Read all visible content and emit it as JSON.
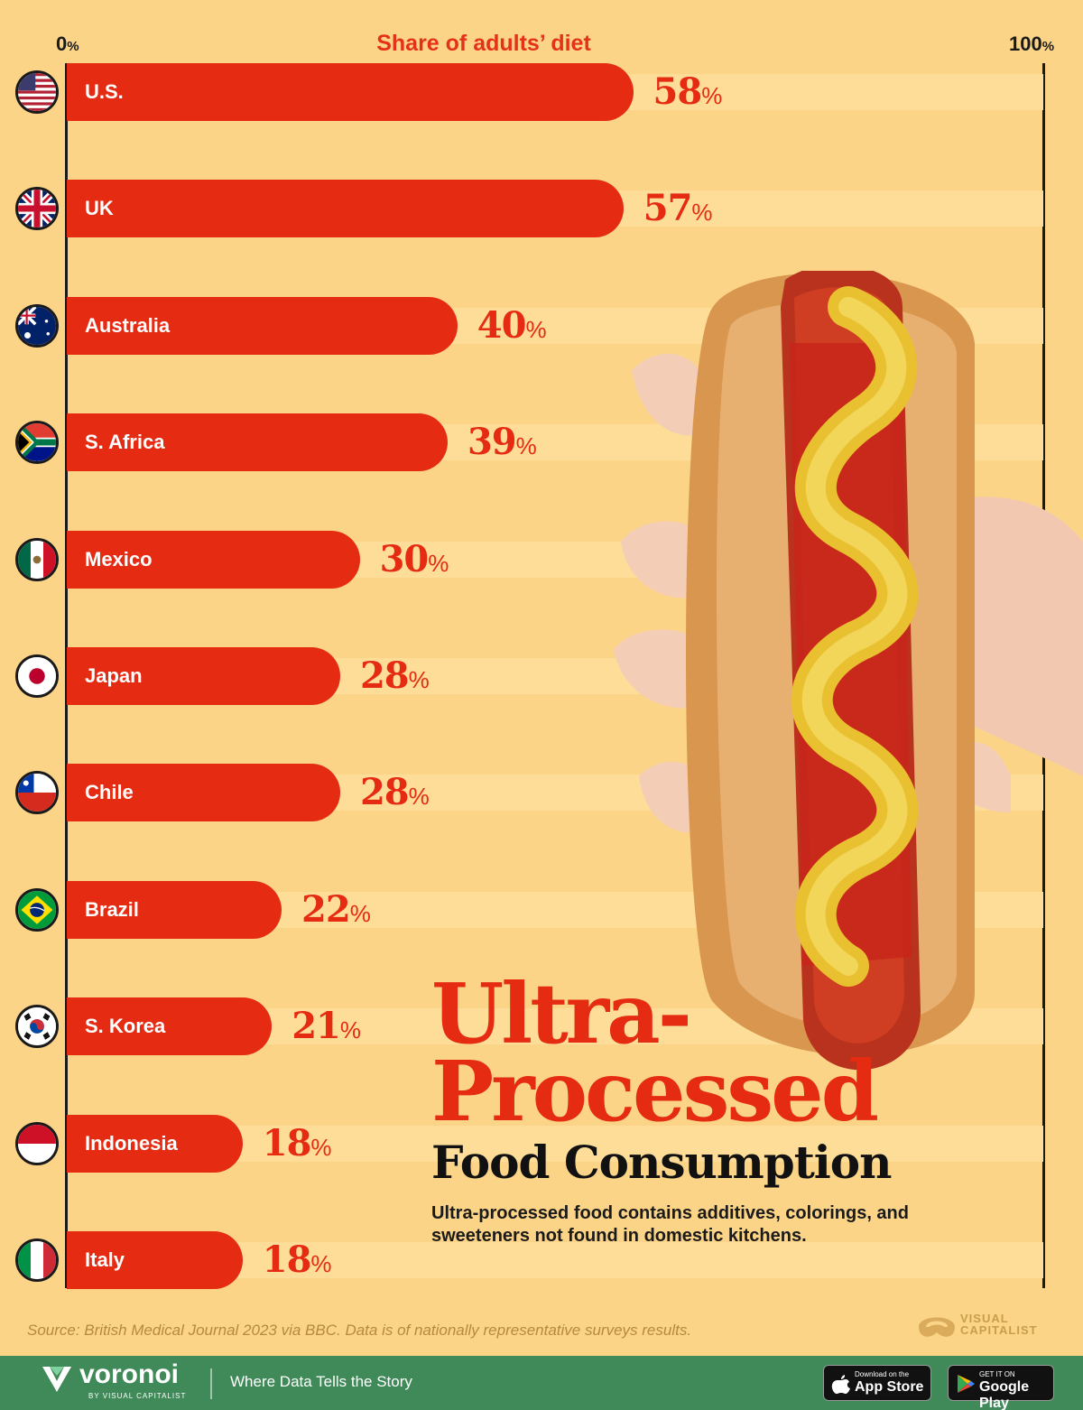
{
  "chart_data": {
    "type": "bar",
    "orientation": "horizontal",
    "title": "Share of adults’ diet",
    "axis_min_label": "0",
    "axis_max_label": "100",
    "axis_unit": "%",
    "xlim": [
      0,
      100
    ],
    "categories": [
      "U.S.",
      "UK",
      "Australia",
      "S. Africa",
      "Mexico",
      "Japan",
      "Chile",
      "Brazil",
      "S. Korea",
      "Indonesia",
      "Italy"
    ],
    "values": [
      58,
      57,
      40,
      39,
      30,
      28,
      28,
      22,
      21,
      18,
      18
    ],
    "value_suffix": "%",
    "bar_color": "#e52b12",
    "background_color": "#fcd488",
    "flags": [
      "us-flag-icon",
      "uk-flag-icon",
      "australia-flag-icon",
      "south-africa-flag-icon",
      "mexico-flag-icon",
      "japan-flag-icon",
      "chile-flag-icon",
      "brazil-flag-icon",
      "south-korea-flag-icon",
      "indonesia-flag-icon",
      "italy-flag-icon"
    ]
  },
  "headline": {
    "line1": "Ultra-",
    "line2": "Processed",
    "line3": "Food Consumption",
    "subtitle": "Ultra-processed food contains additives, colorings, and sweeteners not found in domestic kitchens."
  },
  "source": "Source: British Medical Journal 2023 via BBC. Data is of nationally representative surveys results.",
  "brand": {
    "publisher": "VISUAL CAPITALIST",
    "platform": "voronoi",
    "platform_by": "BY VISUAL CAPITALIST",
    "tagline": "Where Data Tells the Story",
    "app_store_small": "Download on the",
    "app_store_big": "App Store",
    "google_play_small": "GET IT ON",
    "google_play_big": "Google Play"
  }
}
